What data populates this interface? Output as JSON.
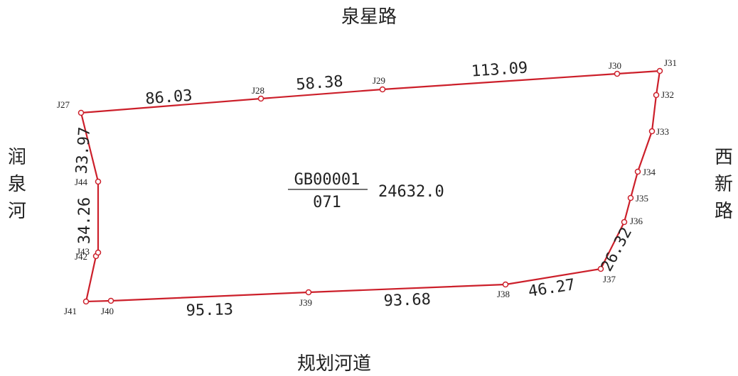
{
  "roads": {
    "north": "泉星路",
    "south": "规划河道",
    "west": "润泉河",
    "east": "西新路"
  },
  "parcel": {
    "code": "GB00001",
    "sub_code": "071",
    "area": "24632.0"
  },
  "points": [
    "J27",
    "J28",
    "J29",
    "J30",
    "J31",
    "J32",
    "J33",
    "J34",
    "J35",
    "J36",
    "J37",
    "J38",
    "J39",
    "J40",
    "J41",
    "J42",
    "J43",
    "J44"
  ],
  "edge_lengths": {
    "j27_j28": "86.03",
    "j28_j29": "58.38",
    "j29_j30": "113.09",
    "j37_j38": "46.27",
    "j38_j39": "93.68",
    "j39_j41": "95.13",
    "j41_j43": "34.26",
    "j44_j27": "33.97",
    "j36_j37": "26.32"
  },
  "colors": {
    "boundary": "#cc1f2a",
    "point_fill": "#ffffff",
    "text": "#222222"
  }
}
